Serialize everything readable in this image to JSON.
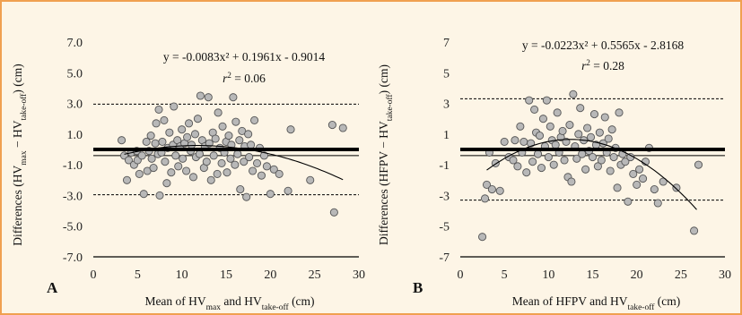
{
  "chart_data": [
    {
      "type": "scatter",
      "panel_label": "A",
      "xlabel": "Mean of HVmax and HVtake-off (cm)",
      "xlabel_parts": {
        "a": "Mean of HV",
        "a_sub": "max",
        "b": " and HV",
        "b_sub": "take-off",
        "c": " (cm)"
      },
      "ylabel": "Differences (HVmax − HVtake-off) (cm)",
      "ylabel_parts": {
        "a": "Differences (HV",
        "a_sub": "max",
        "b": " − HV",
        "b_sub": "take-off",
        "c": ") (cm)"
      },
      "xlim": [
        0,
        30
      ],
      "ylim": [
        -7,
        7
      ],
      "xticks": [
        "0",
        "5",
        "10",
        "15",
        "20",
        "25",
        "30"
      ],
      "yticks": [
        "7.0",
        "5.0",
        "3.0",
        "1.0",
        "-1.0",
        "-3.0",
        "-5.0",
        "-7.0"
      ],
      "equation": "y = -0.0083x² + 0.1961x - 0.9014",
      "r2_text": "= 0.06",
      "fit": {
        "a": -0.0083,
        "b": 0.1961,
        "c": -0.9014,
        "x_range": [
          3.5,
          28.2
        ]
      },
      "mean_bias": 0.0,
      "reference_line": -0.4,
      "limits_of_agreement": [
        2.95,
        -2.95
      ],
      "points": [
        [
          3.2,
          0.6
        ],
        [
          3.5,
          -0.4
        ],
        [
          3.8,
          -2.0
        ],
        [
          4.0,
          -0.7
        ],
        [
          4.3,
          -0.2
        ],
        [
          4.6,
          -1.0
        ],
        [
          4.9,
          -0.1
        ],
        [
          5.0,
          -0.7
        ],
        [
          5.2,
          -1.6
        ],
        [
          5.5,
          -0.4
        ],
        [
          5.7,
          -2.9
        ],
        [
          6.0,
          0.5
        ],
        [
          6.1,
          -1.4
        ],
        [
          6.3,
          -0.1
        ],
        [
          6.5,
          0.9
        ],
        [
          6.6,
          -0.6
        ],
        [
          6.8,
          -1.2
        ],
        [
          7.0,
          0.4
        ],
        [
          7.1,
          1.7
        ],
        [
          7.3,
          -0.3
        ],
        [
          7.4,
          2.6
        ],
        [
          7.5,
          -3.0
        ],
        [
          7.7,
          -0.2
        ],
        [
          7.8,
          0.5
        ],
        [
          8.0,
          1.9
        ],
        [
          8.1,
          -0.8
        ],
        [
          8.3,
          -2.2
        ],
        [
          8.4,
          0.1
        ],
        [
          8.6,
          1.1
        ],
        [
          8.8,
          -1.5
        ],
        [
          9.0,
          0.3
        ],
        [
          9.1,
          2.8
        ],
        [
          9.3,
          -0.4
        ],
        [
          9.5,
          0.6
        ],
        [
          9.6,
          -1.1
        ],
        [
          9.8,
          0.2
        ],
        [
          10.0,
          1.3
        ],
        [
          10.1,
          -0.6
        ],
        [
          10.3,
          0.4
        ],
        [
          10.5,
          -1.4
        ],
        [
          10.6,
          0.8
        ],
        [
          10.8,
          1.7
        ],
        [
          11.0,
          -0.1
        ],
        [
          11.1,
          0.3
        ],
        [
          11.3,
          -1.8
        ],
        [
          11.5,
          1.0
        ],
        [
          11.6,
          -0.5
        ],
        [
          11.8,
          2.0
        ],
        [
          12.0,
          -0.3
        ],
        [
          12.1,
          3.5
        ],
        [
          12.3,
          0.6
        ],
        [
          12.5,
          -1.2
        ],
        [
          12.6,
          0.2
        ],
        [
          12.8,
          -0.8
        ],
        [
          13.0,
          3.4
        ],
        [
          13.1,
          0.4
        ],
        [
          13.3,
          -2.0
        ],
        [
          13.5,
          1.1
        ],
        [
          13.6,
          -0.4
        ],
        [
          13.8,
          0.7
        ],
        [
          14.0,
          -1.6
        ],
        [
          14.1,
          2.4
        ],
        [
          14.3,
          0.1
        ],
        [
          14.5,
          -0.9
        ],
        [
          14.6,
          1.5
        ],
        [
          14.8,
          -0.2
        ],
        [
          15.0,
          0.5
        ],
        [
          15.1,
          -1.5
        ],
        [
          15.3,
          0.9
        ],
        [
          15.5,
          -0.6
        ],
        [
          15.6,
          0.3
        ],
        [
          15.8,
          3.4
        ],
        [
          16.0,
          -1.0
        ],
        [
          16.1,
          1.8
        ],
        [
          16.3,
          -0.3
        ],
        [
          16.5,
          0.6
        ],
        [
          16.6,
          -2.6
        ],
        [
          16.8,
          1.2
        ],
        [
          17.0,
          -0.8
        ],
        [
          17.1,
          0.2
        ],
        [
          17.3,
          -3.1
        ],
        [
          17.5,
          1.0
        ],
        [
          17.6,
          -0.5
        ],
        [
          17.8,
          0.3
        ],
        [
          18.0,
          -1.4
        ],
        [
          18.2,
          1.9
        ],
        [
          18.5,
          -0.9
        ],
        [
          18.8,
          0.1
        ],
        [
          19.0,
          -1.7
        ],
        [
          19.3,
          -0.4
        ],
        [
          19.6,
          -1.1
        ],
        [
          20.0,
          -2.9
        ],
        [
          20.4,
          -1.3
        ],
        [
          21.0,
          -1.6
        ],
        [
          22.0,
          -2.7
        ],
        [
          22.3,
          1.3
        ],
        [
          24.5,
          -2.0
        ],
        [
          27.0,
          1.6
        ],
        [
          27.2,
          -4.1
        ],
        [
          28.2,
          1.4
        ]
      ]
    },
    {
      "type": "scatter",
      "panel_label": "B",
      "xlabel": "Mean of HFPV and HVtake-off (cm)",
      "xlabel_parts": {
        "a": "Mean of HFPV and HV",
        "a_sub": "take-off",
        "b": "",
        "b_sub": "",
        "c": " (cm)"
      },
      "ylabel": "Differences (HFPV − HVtake-off) (cm)",
      "ylabel_parts": {
        "a": "Differences (HFPV − HV",
        "a_sub": "take-off",
        "b": "",
        "b_sub": "",
        "c": ") (cm)"
      },
      "xlim": [
        0,
        30
      ],
      "ylim": [
        -7,
        7
      ],
      "xticks": [
        "0",
        "5",
        "10",
        "15",
        "20",
        "25",
        "30"
      ],
      "yticks": [
        "7",
        "5",
        "3",
        "1",
        "-1",
        "-3",
        "-5",
        "-7"
      ],
      "equation": "y = -0.0223x² + 0.5565x - 2.8168",
      "r2_text": "= 0.28",
      "fit": {
        "a": -0.0223,
        "b": 0.5565,
        "c": -2.8168,
        "x_range": [
          3.0,
          26.8
        ]
      },
      "mean_bias": 0.0,
      "reference_line": -0.4,
      "limits_of_agreement": [
        3.3,
        -3.3
      ],
      "points": [
        [
          2.5,
          -5.7
        ],
        [
          2.8,
          -3.2
        ],
        [
          3.0,
          -2.3
        ],
        [
          3.3,
          -0.2
        ],
        [
          3.6,
          -2.6
        ],
        [
          4.0,
          -0.9
        ],
        [
          4.5,
          -2.7
        ],
        [
          5.0,
          0.5
        ],
        [
          5.5,
          -0.5
        ],
        [
          6.0,
          -0.7
        ],
        [
          6.2,
          0.6
        ],
        [
          6.5,
          -1.1
        ],
        [
          6.8,
          1.5
        ],
        [
          7.0,
          -0.2
        ],
        [
          7.2,
          0.5
        ],
        [
          7.5,
          -1.5
        ],
        [
          7.8,
          3.2
        ],
        [
          8.0,
          0.4
        ],
        [
          8.2,
          -0.8
        ],
        [
          8.4,
          2.6
        ],
        [
          8.6,
          1.1
        ],
        [
          8.8,
          -0.3
        ],
        [
          9.0,
          0.9
        ],
        [
          9.2,
          -1.2
        ],
        [
          9.4,
          2.0
        ],
        [
          9.6,
          0.2
        ],
        [
          9.8,
          3.2
        ],
        [
          10.0,
          -0.5
        ],
        [
          10.2,
          1.5
        ],
        [
          10.4,
          0.6
        ],
        [
          10.6,
          -1.0
        ],
        [
          10.8,
          0.3
        ],
        [
          11.0,
          2.4
        ],
        [
          11.2,
          -0.2
        ],
        [
          11.4,
          0.8
        ],
        [
          11.6,
          1.2
        ],
        [
          11.8,
          -0.7
        ],
        [
          12.0,
          0.5
        ],
        [
          12.2,
          -1.8
        ],
        [
          12.4,
          1.6
        ],
        [
          12.6,
          -2.1
        ],
        [
          12.8,
          3.6
        ],
        [
          13.0,
          0.2
        ],
        [
          13.2,
          -0.6
        ],
        [
          13.4,
          1.0
        ],
        [
          13.6,
          2.7
        ],
        [
          13.8,
          -0.3
        ],
        [
          14.0,
          0.6
        ],
        [
          14.2,
          -1.3
        ],
        [
          14.4,
          1.4
        ],
        [
          14.6,
          -0.1
        ],
        [
          14.8,
          0.8
        ],
        [
          15.0,
          -0.5
        ],
        [
          15.2,
          2.3
        ],
        [
          15.4,
          0.3
        ],
        [
          15.6,
          -1.1
        ],
        [
          15.8,
          1.1
        ],
        [
          16.0,
          -0.7
        ],
        [
          16.2,
          0.4
        ],
        [
          16.4,
          2.1
        ],
        [
          16.6,
          -0.2
        ],
        [
          16.8,
          0.7
        ],
        [
          17.0,
          -1.4
        ],
        [
          17.2,
          1.3
        ],
        [
          17.4,
          -0.5
        ],
        [
          17.6,
          0.1
        ],
        [
          17.8,
          -2.5
        ],
        [
          18.0,
          2.4
        ],
        [
          18.2,
          -1.0
        ],
        [
          18.4,
          -0.3
        ],
        [
          18.7,
          -0.8
        ],
        [
          19.0,
          -3.4
        ],
        [
          19.3,
          -0.5
        ],
        [
          19.6,
          -1.6
        ],
        [
          20.0,
          -2.3
        ],
        [
          20.3,
          -1.3
        ],
        [
          20.7,
          -1.9
        ],
        [
          21.0,
          -0.8
        ],
        [
          21.4,
          0.1
        ],
        [
          22.0,
          -2.6
        ],
        [
          22.4,
          -3.5
        ],
        [
          23.0,
          -2.1
        ],
        [
          24.5,
          -2.5
        ],
        [
          26.5,
          -5.3
        ],
        [
          27.0,
          -1.0
        ]
      ]
    }
  ]
}
